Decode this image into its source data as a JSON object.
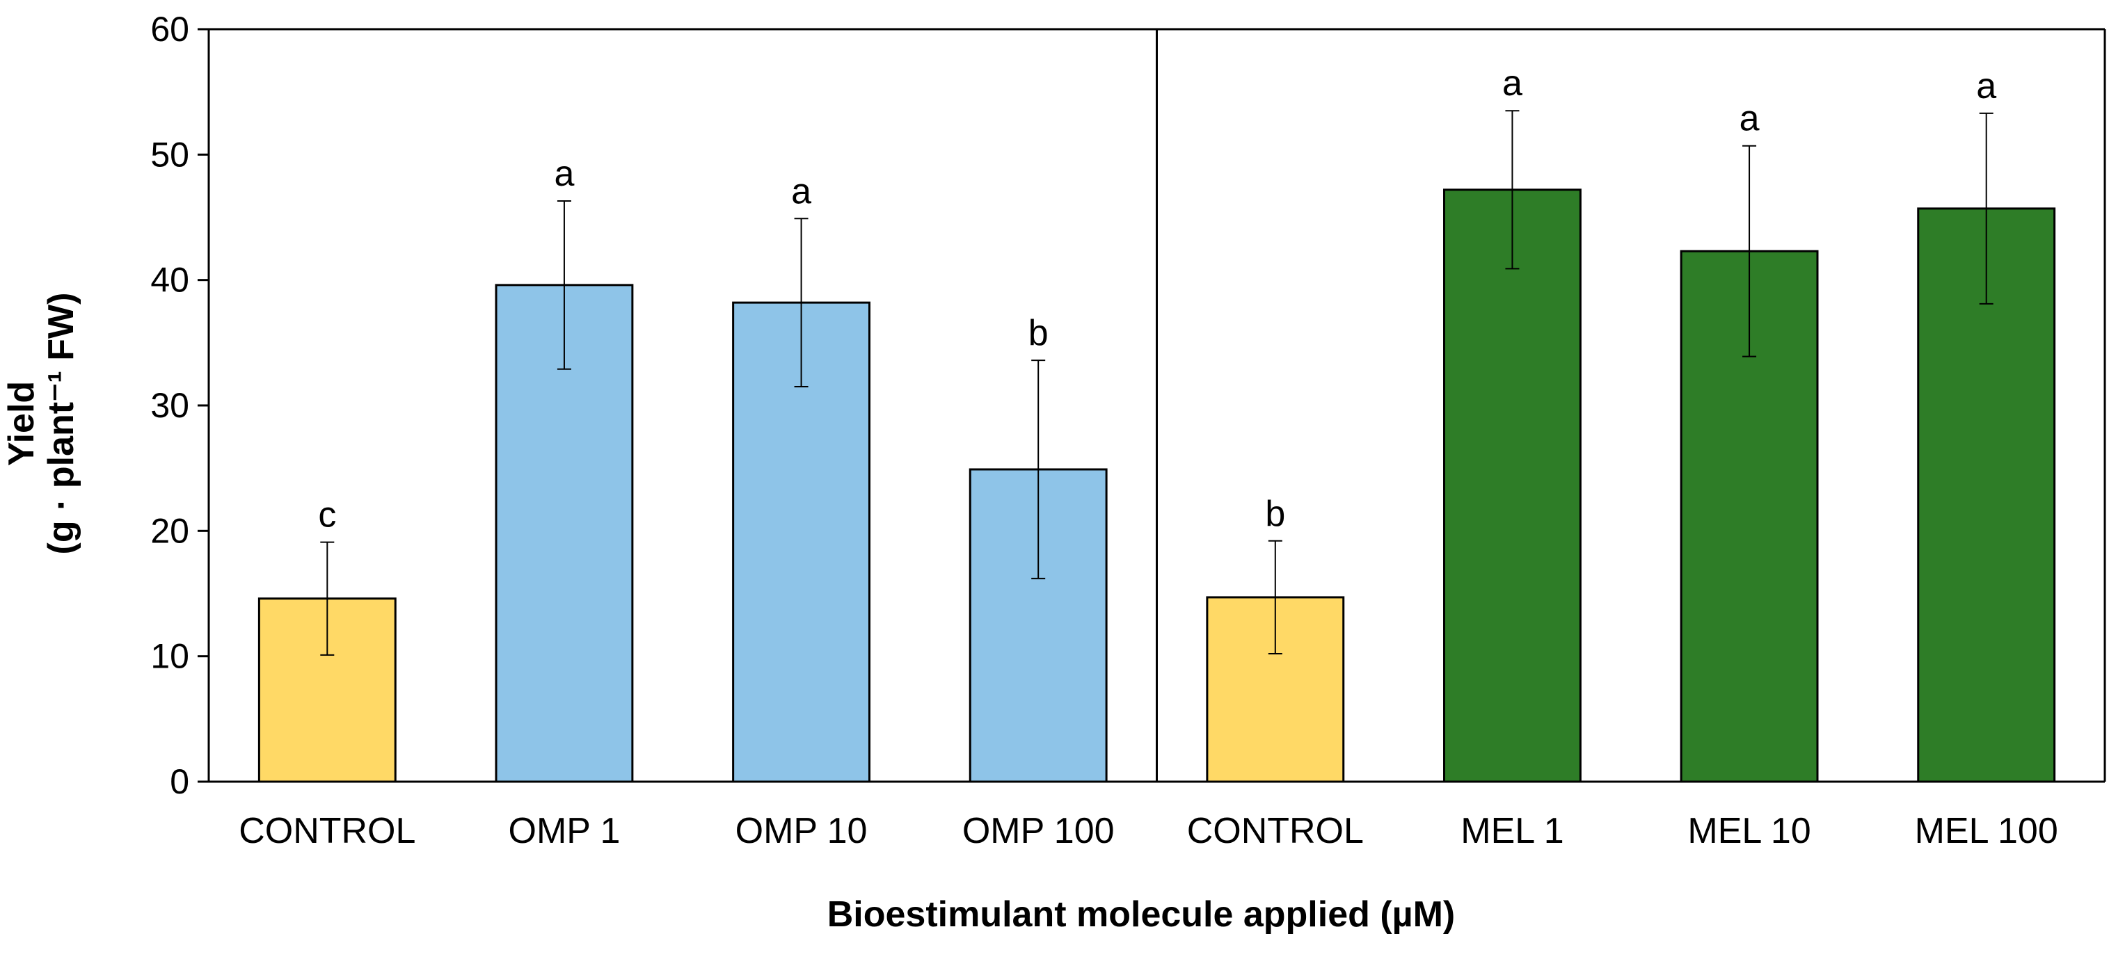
{
  "chart_data": {
    "type": "bar",
    "ylabel_line1": "Yield",
    "ylabel_line2": "(g · plant⁻¹ FW)",
    "xlabel": "Bioestimulant molecule applied (µM)",
    "ylim": [
      0,
      60
    ],
    "yticks": [
      0,
      10,
      20,
      30,
      40,
      50,
      60
    ],
    "grid": false,
    "panels": [
      {
        "name": "OMP",
        "categories": [
          "CONTROL",
          "OMP 1",
          "OMP 10",
          "OMP 100"
        ],
        "values": [
          14.6,
          39.6,
          38.2,
          24.9
        ],
        "errors": [
          4.5,
          6.7,
          6.7,
          8.7
        ],
        "significance": [
          "c",
          "a",
          "a",
          "b"
        ],
        "colors": [
          "#FFD966",
          "#8EC4E8",
          "#8EC4E8",
          "#8EC4E8"
        ]
      },
      {
        "name": "MEL",
        "categories": [
          "CONTROL",
          "MEL 1",
          "MEL 10",
          "MEL 100"
        ],
        "values": [
          14.7,
          47.2,
          42.3,
          45.7
        ],
        "errors": [
          4.5,
          6.3,
          8.4,
          7.6
        ],
        "significance": [
          "b",
          "a",
          "a",
          "a"
        ],
        "colors": [
          "#FFD966",
          "#2E7D27",
          "#2E7D27",
          "#2E7D27"
        ]
      }
    ]
  }
}
